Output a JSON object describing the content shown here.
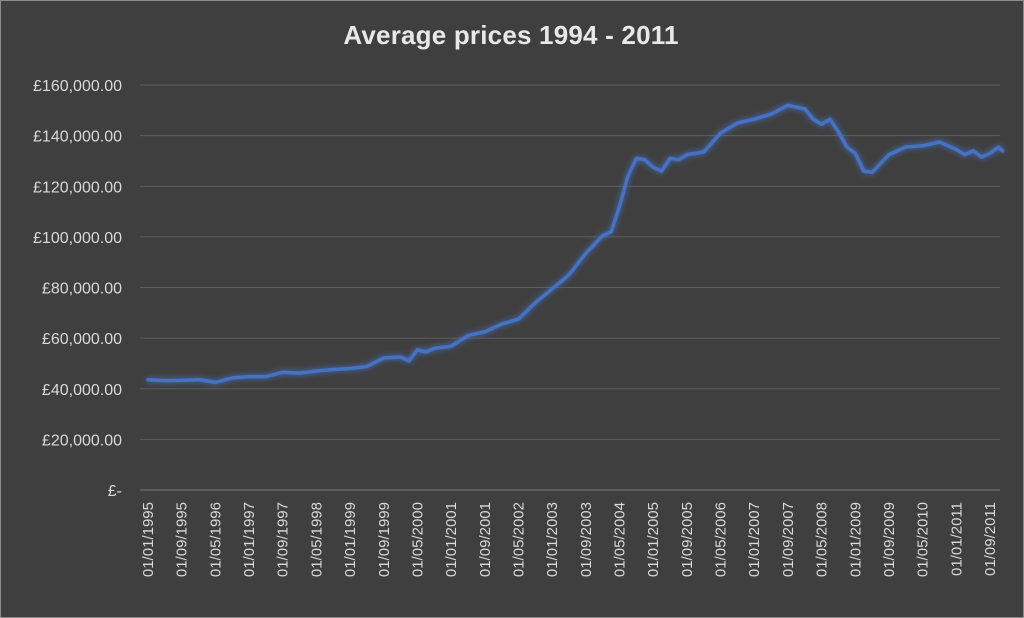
{
  "chart_data": {
    "type": "line",
    "title": "Average prices 1994 - 2011",
    "xlabel": "",
    "ylabel": "",
    "ylim": [
      0,
      160000
    ],
    "y_ticks": [
      0,
      20000,
      40000,
      60000,
      80000,
      100000,
      120000,
      140000,
      160000
    ],
    "y_tick_labels": [
      "£-",
      "£20,000.00",
      "£40,000.00",
      "£60,000.00",
      "£80,000.00",
      "£100,000.00",
      "£120,000.00",
      "£140,000.00",
      "£160,000.00"
    ],
    "x_tick_labels": [
      "01/01/1995",
      "01/09/1995",
      "01/05/1996",
      "01/01/1997",
      "01/09/1997",
      "01/05/1998",
      "01/01/1999",
      "01/09/1999",
      "01/05/2000",
      "01/01/2001",
      "01/09/2001",
      "01/05/2002",
      "01/01/2003",
      "01/09/2003",
      "01/05/2004",
      "01/01/2005",
      "01/09/2005",
      "01/05/2006",
      "01/01/2007",
      "01/09/2007",
      "01/05/2008",
      "01/01/2009",
      "01/09/2009",
      "01/05/2010",
      "01/01/2011",
      "01/09/2011"
    ],
    "grid": true,
    "legend": "none",
    "line_color": "#4472c4",
    "series": [
      {
        "points": [
          [
            "01/01/1995",
            43500
          ],
          [
            "01/05/1995",
            43200
          ],
          [
            "01/09/1995",
            43300
          ],
          [
            "01/01/1996",
            43600
          ],
          [
            "01/05/1996",
            42500
          ],
          [
            "01/09/1996",
            44300
          ],
          [
            "01/01/1997",
            44800
          ],
          [
            "01/05/1997",
            44800
          ],
          [
            "01/09/1997",
            46500
          ],
          [
            "01/01/1998",
            46200
          ],
          [
            "01/05/1998",
            47000
          ],
          [
            "01/09/1998",
            47600
          ],
          [
            "01/01/1999",
            48000
          ],
          [
            "01/05/1999",
            48800
          ],
          [
            "01/09/1999",
            52200
          ],
          [
            "01/01/2000",
            52500
          ],
          [
            "01/03/2000",
            51000
          ],
          [
            "01/05/2000",
            55400
          ],
          [
            "01/07/2000",
            54500
          ],
          [
            "01/09/2000",
            56000
          ],
          [
            "01/01/2001",
            56800
          ],
          [
            "01/05/2001",
            61000
          ],
          [
            "01/09/2001",
            62500
          ],
          [
            "01/01/2002",
            65500
          ],
          [
            "01/05/2002",
            67500
          ],
          [
            "01/09/2002",
            74000
          ],
          [
            "01/01/2003",
            79500
          ],
          [
            "01/05/2003",
            85000
          ],
          [
            "01/09/2003",
            93500
          ],
          [
            "01/01/2004",
            100500
          ],
          [
            "01/03/2004",
            102000
          ],
          [
            "01/05/2004",
            112000
          ],
          [
            "01/07/2004",
            124000
          ],
          [
            "01/09/2004",
            131000
          ],
          [
            "01/11/2004",
            130500
          ],
          [
            "01/01/2005",
            127500
          ],
          [
            "01/03/2005",
            126000
          ],
          [
            "01/05/2005",
            131000
          ],
          [
            "01/07/2005",
            130500
          ],
          [
            "01/09/2005",
            132500
          ],
          [
            "01/01/2006",
            133500
          ],
          [
            "01/05/2006",
            141000
          ],
          [
            "01/09/2006",
            145000
          ],
          [
            "01/01/2007",
            146500
          ],
          [
            "01/05/2007",
            148500
          ],
          [
            "01/09/2007",
            152000
          ],
          [
            "01/01/2008",
            150500
          ],
          [
            "01/03/2008",
            146500
          ],
          [
            "01/05/2008",
            144500
          ],
          [
            "01/07/2008",
            146500
          ],
          [
            "01/09/2008",
            141500
          ],
          [
            "01/11/2008",
            135500
          ],
          [
            "01/01/2009",
            133000
          ],
          [
            "01/03/2009",
            126000
          ],
          [
            "01/05/2009",
            125500
          ],
          [
            "01/09/2009",
            132500
          ],
          [
            "01/01/2010",
            135500
          ],
          [
            "01/05/2010",
            136000
          ],
          [
            "01/09/2010",
            137500
          ],
          [
            "01/01/2011",
            134500
          ],
          [
            "01/03/2011",
            132500
          ],
          [
            "01/05/2011",
            134000
          ],
          [
            "01/07/2011",
            131500
          ],
          [
            "01/09/2011",
            133000
          ],
          [
            "01/11/2011",
            135500
          ],
          [
            "01/12/2011",
            134000
          ]
        ]
      }
    ]
  }
}
